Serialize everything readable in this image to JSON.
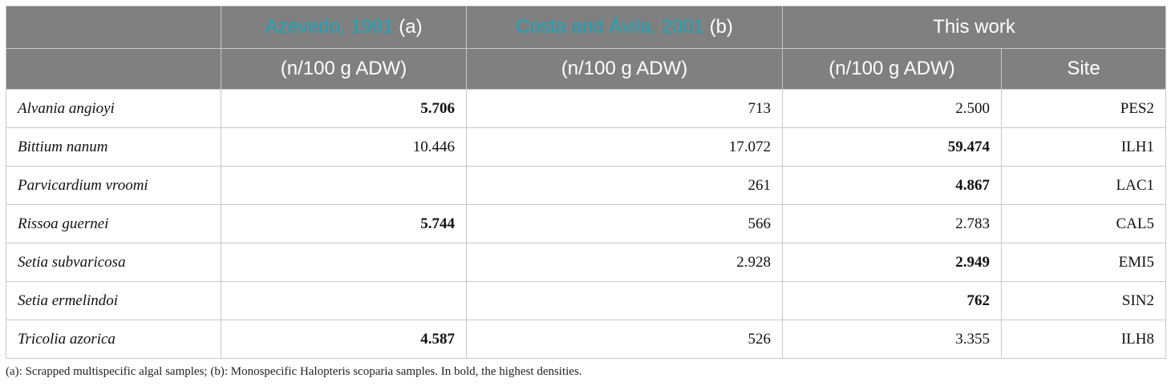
{
  "header": {
    "ref_a": {
      "link": "Azevedo, 1991",
      "suffix": " (a)"
    },
    "ref_b": {
      "link": "Costa and Ávila, 2001",
      "suffix": " (b)"
    },
    "this_work": "This work",
    "unit_a": "(n/100 g ADW)",
    "unit_b": "(n/100 g ADW)",
    "unit_c": "(n/100 g ADW)",
    "site": "Site"
  },
  "rows": [
    {
      "species": "Alvania angioyi",
      "a": "5.706",
      "b": "713",
      "c": "2.500",
      "site": "PES2"
    },
    {
      "species": "Bittium nanum",
      "a": "10.446",
      "b": "17.072",
      "c": "59.474",
      "site": "ILH1"
    },
    {
      "species": "Parvicardium vroomi",
      "a": "",
      "b": "261",
      "c": "4.867",
      "site": "LAC1"
    },
    {
      "species": "Rissoa guernei",
      "a": "5.744",
      "b": "566",
      "c": "2.783",
      "site": "CAL5"
    },
    {
      "species": "Setia subvaricosa",
      "a": "",
      "b": "2.928",
      "c": "2.949",
      "site": "EMI5"
    },
    {
      "species": "Setia ermelindoi",
      "a": "",
      "b": "",
      "c": "762",
      "site": "SIN2"
    },
    {
      "species": "Tricolia azorica",
      "a": "4.587",
      "b": "526",
      "c": "3.355",
      "site": "ILH8"
    }
  ],
  "footnote": "(a): Scrapped multispecific algal samples; (b): Monospecific Halopteris scoparia samples. In bold, the highest densities."
}
